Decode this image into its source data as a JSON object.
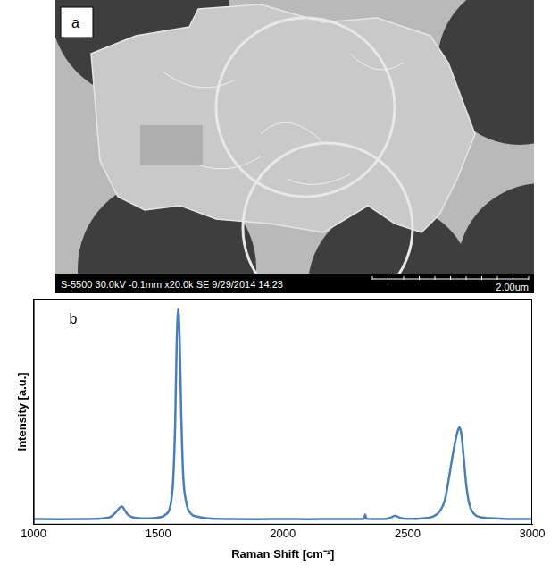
{
  "image_panel": {
    "label": "a",
    "info_bar": "S-5500 30.0kV -0.1mm x20.0k SE 9/29/2014 14:23",
    "scale_bar": "2.00um"
  },
  "chart_data": {
    "type": "line",
    "panel_label": "b",
    "x_label": "Raman Shift [cm⁻¹]",
    "y_label": "Intensity [a.u.]",
    "x": [
      1000,
      1100,
      1200,
      1280,
      1310,
      1330,
      1345,
      1355,
      1365,
      1380,
      1400,
      1450,
      1500,
      1530,
      1550,
      1560,
      1568,
      1574,
      1580,
      1586,
      1592,
      1600,
      1612,
      1630,
      1660,
      1700,
      1800,
      1900,
      2000,
      2100,
      2200,
      2300,
      2325,
      2330,
      2335,
      2400,
      2430,
      2450,
      2470,
      2500,
      2560,
      2600,
      2630,
      2650,
      2665,
      2680,
      2690,
      2700,
      2708,
      2716,
      2725,
      2735,
      2748,
      2765,
      2790,
      2850,
      2900,
      3000
    ],
    "values": [
      2.5,
      2.4,
      2.5,
      2.8,
      3.5,
      5.5,
      7.5,
      8,
      6.5,
      4.2,
      3.2,
      2.8,
      3.2,
      4.5,
      9,
      20,
      45,
      80,
      95.5,
      82,
      50,
      22,
      10,
      5,
      3.5,
      2.8,
      2.5,
      2.4,
      2.5,
      2.4,
      2.5,
      2.5,
      2.6,
      4.5,
      2.6,
      2.5,
      3,
      4,
      3,
      2.6,
      2.8,
      3.5,
      6,
      11,
      20,
      30,
      36,
      41,
      43,
      40,
      30,
      18,
      9,
      5,
      3.4,
      2.8,
      2.5,
      2.5
    ],
    "color": "#4a7ebb",
    "xlim": [
      1000,
      3000
    ],
    "xticks": [
      1000,
      1500,
      2000,
      2500,
      3000
    ],
    "ylim": [
      0,
      100
    ],
    "tick_labels": "x",
    "grid": false
  }
}
